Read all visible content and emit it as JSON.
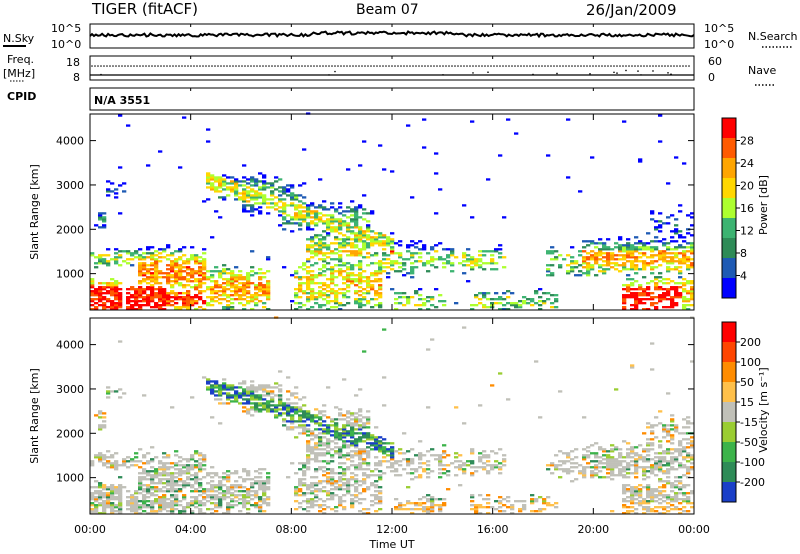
{
  "header": {
    "title": "TIGER (fitACF)",
    "beam": "Beam 07",
    "date": "26/Jan/2009"
  },
  "noise_panel": {
    "left_label": "N.Sky",
    "right_label": "N.Search",
    "top_tick": "10^5",
    "bottom_tick": "10^0"
  },
  "freq_panel": {
    "left_label_line1": "Freq.",
    "left_label_line2": "[MHz]",
    "left_ticks": [
      "18",
      "8"
    ],
    "right_ticks": [
      "60",
      "0"
    ],
    "right_label": "Nave"
  },
  "cpid": {
    "label": "CPID",
    "value": "N/A 3551"
  },
  "chart_data": [
    {
      "type": "heatmap",
      "name": "power",
      "ylabel": "Slant Range [km]",
      "yticks": [
        "1000",
        "2000",
        "3000",
        "4000"
      ],
      "ylim": [
        180,
        4600
      ],
      "colorbar_label": "Power [dB]",
      "colorbar_ticks": [
        "4",
        "8",
        "12",
        "16",
        "20",
        "24",
        "28"
      ],
      "colorbar_range": [
        0,
        32
      ],
      "colors": [
        "#0000ff",
        "#1e5ab4",
        "#2e8b57",
        "#3cb371",
        "#adff2f",
        "#ffd700",
        "#ffa500",
        "#ff5a00",
        "#ff0000"
      ]
    },
    {
      "type": "heatmap",
      "name": "velocity",
      "ylabel": "Slant Range [km]",
      "yticks": [
        "1000",
        "2000",
        "3000",
        "4000"
      ],
      "ylim": [
        180,
        4600
      ],
      "colorbar_label": "Velocity [m s⁻¹]",
      "colorbar_ticks": [
        "200",
        "100",
        "50",
        "15",
        "-15",
        "-50",
        "-100",
        "-200"
      ],
      "colors": [
        "#1a3fc8",
        "#2e8b57",
        "#3cb34a",
        "#9acd32",
        "#c0c0b8",
        "#ffc04a",
        "#ff8c00",
        "#ff4500",
        "#ff0000"
      ]
    }
  ],
  "x_axis": {
    "label": "Time UT",
    "ticks": [
      "00:00",
      "04:00",
      "08:00",
      "12:00",
      "16:00",
      "20:00",
      "00:00"
    ]
  }
}
